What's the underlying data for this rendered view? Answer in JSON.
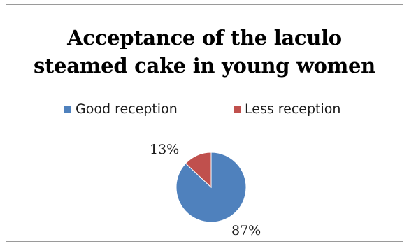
{
  "chart_data": {
    "type": "pie",
    "title": "Acceptance of the laculo steamed cake in young women",
    "title_lines": [
      "Acceptance of the laculo",
      "steamed cake in young women"
    ],
    "categories": [
      "Good reception",
      "Less reception"
    ],
    "values": [
      87,
      13
    ],
    "data_labels": [
      "87%",
      "13%"
    ],
    "colors": [
      "#4f81bd",
      "#c0504d"
    ],
    "legend_position": "top"
  }
}
